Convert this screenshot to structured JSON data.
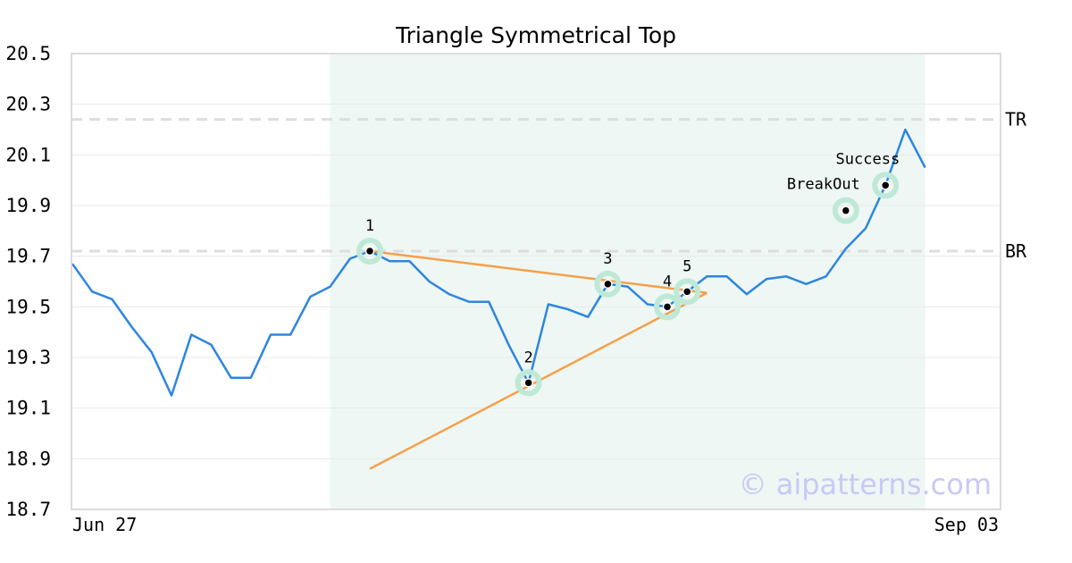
{
  "chart_data": {
    "type": "line",
    "title": "Triangle Symmetrical Top",
    "xlabel": "",
    "ylabel": "",
    "ylim": [
      18.7,
      20.5
    ],
    "y_ticks": [
      "20.5",
      "20.3",
      "20.1",
      "19.9",
      "19.7",
      "19.5",
      "19.3",
      "19.1",
      "18.9",
      "18.7"
    ],
    "x_tick_labels": [
      "Jun 27",
      "Sep 03"
    ],
    "grid": "horizontal",
    "highlight_region": {
      "start_index": 13,
      "end_index": 43
    },
    "series": [
      {
        "color": "#2e86de",
        "values": [
          19.67,
          19.56,
          19.53,
          19.42,
          19.32,
          19.15,
          19.39,
          19.35,
          19.22,
          19.22,
          19.39,
          19.39,
          19.54,
          19.58,
          19.69,
          19.72,
          19.68,
          19.68,
          19.6,
          19.55,
          19.52,
          19.52,
          19.35,
          19.2,
          19.51,
          19.49,
          19.46,
          19.59,
          19.58,
          19.51,
          19.5,
          19.56,
          19.62,
          19.62,
          19.55,
          19.61,
          19.62,
          19.59,
          19.62,
          19.73,
          19.81,
          19.98,
          20.2,
          20.05
        ]
      }
    ],
    "trendlines": [
      {
        "color": "#f5a04a",
        "from": {
          "index": 15,
          "value": 19.72
        },
        "to": {
          "index": 32,
          "value": 19.555
        }
      },
      {
        "color": "#f5a04a",
        "from": {
          "index": 15,
          "value": 18.86
        },
        "to": {
          "index": 32,
          "value": 19.555
        }
      }
    ],
    "levels": [
      {
        "label": "TR",
        "value": 20.24
      },
      {
        "label": "BR",
        "value": 19.72
      }
    ],
    "points": [
      {
        "label": "1",
        "index": 15,
        "value": 19.72
      },
      {
        "label": "2",
        "index": 23,
        "value": 19.2
      },
      {
        "label": "3",
        "index": 27,
        "value": 19.59
      },
      {
        "label": "4",
        "index": 30,
        "value": 19.5
      },
      {
        "label": "5",
        "index": 31,
        "value": 19.56
      }
    ],
    "annotations": [
      {
        "label": "BreakOut",
        "index": 39,
        "value": 19.88
      },
      {
        "label": "Success",
        "index": 41,
        "value": 19.98
      }
    ],
    "watermark": "© aipatterns.com",
    "colors": {
      "line": "#2e86de",
      "trend": "#f5a04a",
      "highlight": "#eef7f3",
      "marker_halo": "#bfe9d6",
      "level": "#dddddd"
    }
  }
}
